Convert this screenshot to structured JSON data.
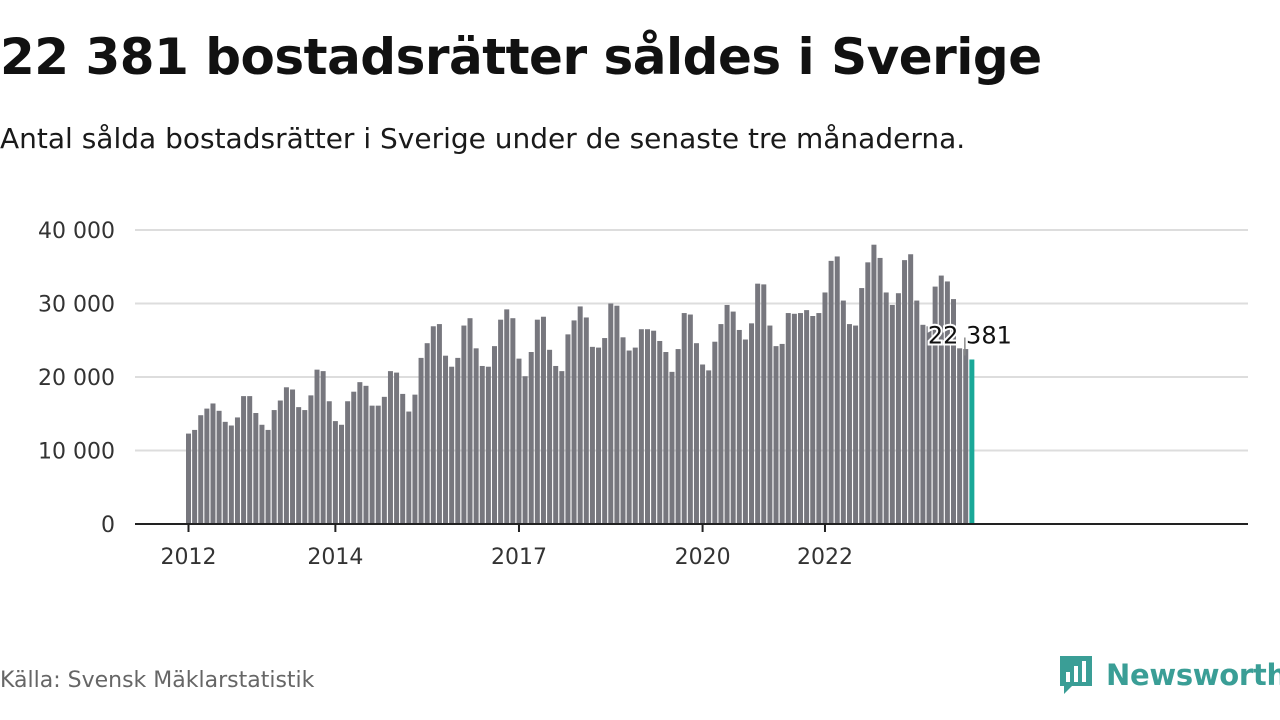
{
  "title": "22 381 bostadsrätter såldes i Sverige",
  "subtitle": "Antal sålda bostadsrätter i Sverige under de senaste tre månaderna.",
  "source": "Källa: Svensk Mäklarstatistik",
  "brand": "Newsworthy",
  "colors": {
    "bar": "#77777e",
    "highlight": "#1aa898",
    "grid": "#dddddd",
    "axis": "#222222",
    "brand": "#3a9e96"
  },
  "chart_data": {
    "type": "bar",
    "title": "22 381 bostadsrätter såldes i Sverige",
    "subtitle": "Antal sålda bostadsrätter i Sverige under de senaste tre månaderna.",
    "xlabel": "",
    "ylabel": "",
    "ylim": [
      0,
      40000
    ],
    "yticks": [
      0,
      10000,
      20000,
      30000,
      40000
    ],
    "ytick_labels": [
      "0",
      "10 000",
      "20 000",
      "30 000",
      "40 000"
    ],
    "xtick_labels": [
      "2012",
      "2014",
      "2017",
      "2020",
      "2022"
    ],
    "xtick_index": [
      0,
      24,
      54,
      84,
      104
    ],
    "grid": true,
    "highlight_label": "22 381",
    "categories": [
      "2012-01",
      "2012-02",
      "2012-03",
      "2012-04",
      "2012-05",
      "2012-06",
      "2012-07",
      "2012-08",
      "2012-09",
      "2012-10",
      "2012-11",
      "2012-12",
      "2013-01",
      "2013-02",
      "2013-03",
      "2013-04",
      "2013-05",
      "2013-06",
      "2013-07",
      "2013-08",
      "2013-09",
      "2013-10",
      "2013-11",
      "2013-12",
      "2014-01",
      "2014-02",
      "2014-03",
      "2014-04",
      "2014-05",
      "2014-06",
      "2014-07",
      "2014-08",
      "2014-09",
      "2014-10",
      "2014-11",
      "2014-12",
      "2015-01",
      "2015-02",
      "2015-03",
      "2015-04",
      "2015-05",
      "2015-06",
      "2015-07",
      "2015-08",
      "2015-09",
      "2015-10",
      "2015-11",
      "2015-12",
      "2016-01",
      "2016-02",
      "2016-03",
      "2016-04",
      "2016-05",
      "2016-06",
      "2016-07",
      "2016-08",
      "2016-09",
      "2016-10",
      "2016-11",
      "2016-12",
      "2017-01",
      "2017-02",
      "2017-03",
      "2017-04",
      "2017-05",
      "2017-06",
      "2017-07",
      "2017-08",
      "2017-09",
      "2017-10",
      "2017-11",
      "2017-12",
      "2018-01",
      "2018-02",
      "2018-03",
      "2018-04",
      "2018-05",
      "2018-06",
      "2018-07",
      "2018-08",
      "2018-09",
      "2018-10",
      "2018-11",
      "2018-12",
      "2019-01",
      "2019-02",
      "2019-03",
      "2019-04",
      "2019-05",
      "2019-06",
      "2019-07",
      "2019-08",
      "2019-09",
      "2019-10",
      "2019-11",
      "2019-12",
      "2020-01",
      "2020-02",
      "2020-03",
      "2020-04",
      "2020-05",
      "2020-06",
      "2020-07",
      "2020-08",
      "2020-09",
      "2020-10",
      "2020-11",
      "2020-12",
      "2021-01",
      "2021-02",
      "2021-03",
      "2021-04",
      "2021-05",
      "2021-06",
      "2021-07",
      "2021-08",
      "2021-09",
      "2021-10",
      "2021-11",
      "2021-12",
      "2022-01",
      "2022-02",
      "2022-03",
      "2022-04",
      "2022-05",
      "2022-06",
      "2022-07",
      "2022-08",
      "2022-09"
    ],
    "values": [
      12300,
      12800,
      14800,
      15700,
      16400,
      15400,
      13900,
      13400,
      14500,
      17400,
      17400,
      15100,
      13500,
      12800,
      15500,
      16800,
      18600,
      18300,
      15900,
      15500,
      17500,
      21000,
      20800,
      16700,
      14000,
      13500,
      16700,
      18000,
      19300,
      18800,
      16100,
      16100,
      17300,
      20800,
      20600,
      17700,
      15300,
      17600,
      22600,
      24600,
      26900,
      27200,
      22900,
      21400,
      22600,
      27000,
      28000,
      23900,
      21500,
      21400,
      24200,
      27800,
      29200,
      28000,
      22500,
      20100,
      23400,
      27800,
      28200,
      23700,
      21500,
      20800,
      25800,
      27700,
      29600,
      28100,
      24100,
      24000,
      25300,
      30000,
      29700,
      25400,
      23600,
      24000,
      26500,
      26500,
      26300,
      24900,
      23400,
      20700,
      23800,
      28700,
      28500,
      24600,
      21700,
      20900,
      24800,
      27200,
      29800,
      28900,
      26400,
      25100,
      27300,
      32700,
      32600,
      27000,
      24200,
      24500,
      28700,
      28600,
      28700,
      29100,
      28300,
      28700,
      31500,
      35800,
      36400,
      30400,
      27200,
      27000,
      32100,
      35600,
      38000,
      36200,
      31500,
      29800,
      31400,
      35900,
      36700,
      30400,
      27100,
      26900,
      32300,
      33800,
      33000,
      30600,
      23900,
      23800,
      22381
    ],
    "highlight_count": 1
  }
}
